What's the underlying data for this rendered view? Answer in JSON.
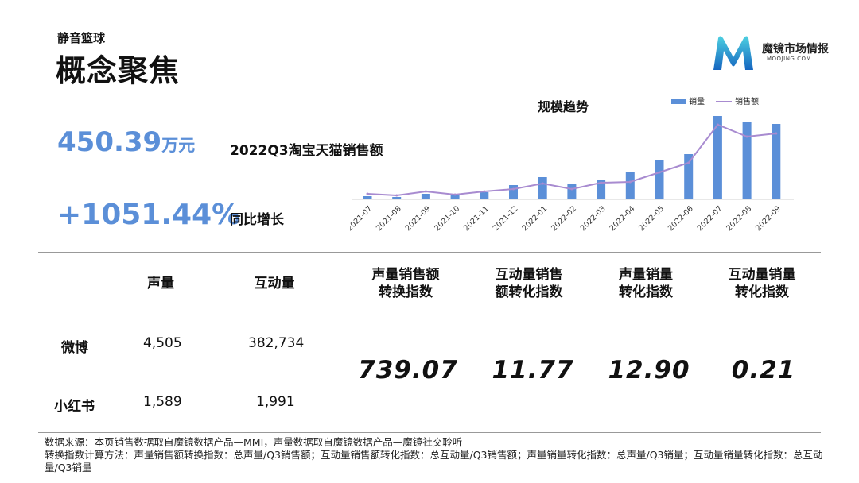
{
  "header": {
    "subtitle": "静音篮球",
    "title": "概念聚焦"
  },
  "brand": {
    "name": "魔镜市场情报",
    "url": "MOOJING.COM",
    "colors": {
      "light": "#4dd0e1",
      "dark": "#1565c0"
    }
  },
  "kpi": {
    "sales_number": "450.39",
    "sales_unit": "万元",
    "sales_label": "2022Q3淘宝天猫销售额",
    "growth_value": "+1051.44%",
    "growth_label": "同比增长"
  },
  "chart_title": "规模趋势",
  "chart_data": {
    "type": "bar",
    "title": "规模趋势",
    "categories": [
      "2021-07",
      "2021-08",
      "2021-09",
      "2021-10",
      "2021-11",
      "2021-12",
      "2022-01",
      "2022-02",
      "2022-03",
      "2022-04",
      "2022-05",
      "2022-06",
      "2022-07",
      "2022-08",
      "2022-09"
    ],
    "series": [
      {
        "name": "销量",
        "type": "bar",
        "color": "#5b8fd8",
        "values": [
          4,
          3,
          7,
          6,
          9,
          18,
          28,
          20,
          25,
          35,
          50,
          57,
          105,
          97,
          95
        ]
      },
      {
        "name": "销售额",
        "type": "line",
        "color": "#a88bd0",
        "values": [
          7,
          5,
          10,
          6,
          10,
          13,
          20,
          13,
          21,
          22,
          34,
          46,
          94,
          79,
          83
        ]
      }
    ],
    "legend_position": "top-right",
    "grid": false,
    "ylim": [
      0,
      110
    ]
  },
  "table": {
    "headers": [
      "声量",
      "互动量"
    ],
    "rows": [
      {
        "label": "微博",
        "values": [
          "4,505",
          "382,734"
        ]
      },
      {
        "label": "小红书",
        "values": [
          "1,589",
          "1,991"
        ]
      }
    ]
  },
  "indices": [
    {
      "label_l1": "声量销售额",
      "label_l2": "转换指数",
      "value": "739.07"
    },
    {
      "label_l1": "互动量销售",
      "label_l2": "额转化指数",
      "value": "11.77"
    },
    {
      "label_l1": "声量销量",
      "label_l2": "转化指数",
      "value": "12.90"
    },
    {
      "label_l1": "互动量销量",
      "label_l2": "转化指数",
      "value": "0.21"
    }
  ],
  "notes": {
    "line1": "数据来源：本页销售数据取自魔镜数据产品—MMI，声量数据取自魔镜数据产品—魔镜社交聆听",
    "line2": "转换指数计算方法：声量销售额转换指数：总声量/Q3销售额；互动量销售额转化指数：总互动量/Q3销售额；声量销量转化指数：总声量/Q3销量；互动量销量转化指数：总互动量/Q3销量"
  }
}
